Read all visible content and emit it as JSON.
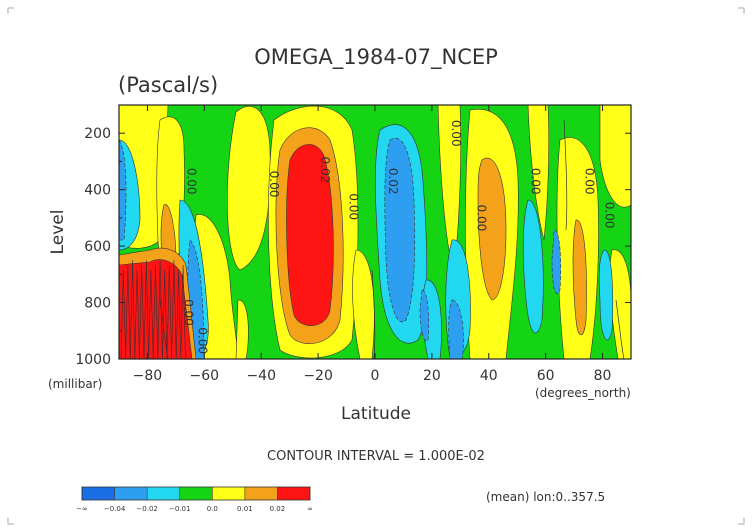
{
  "chart_data": {
    "type": "heatmap",
    "title": "OMEGA_1984-07_NCEP",
    "units": "(Pascal/s)",
    "xlabel": "Latitude",
    "x_units": "(degrees_north)",
    "ylabel": "Level",
    "y_units": "(millibar)",
    "xlim": [
      -90,
      90
    ],
    "ylim": [
      1000,
      100
    ],
    "x_ticks": [
      -80,
      -60,
      -40,
      -20,
      0,
      20,
      40,
      60,
      80
    ],
    "x_tick_labels": [
      "−80",
      "−60",
      "−40",
      "−20",
      "0",
      "20",
      "40",
      "60",
      "80"
    ],
    "y_ticks": [
      200,
      400,
      600,
      800,
      1000
    ],
    "y_tick_labels": [
      "200",
      "400",
      "600",
      "800",
      "1000"
    ],
    "contour_interval_text": "CONTOUR INTERVAL = 1.000E-02",
    "footnote": "(mean) lon:0..357.5",
    "colorbar": {
      "colors": [
        "#1a6fe6",
        "#2e9ff0",
        "#22d8f0",
        "#14d414",
        "#ffff18",
        "#f5a21b",
        "#ff1414"
      ],
      "tick_labels": [
        "−∞",
        "−0.04",
        "−0.02",
        "−0.01",
        "0.0",
        "0.01",
        "0.02",
        "∞"
      ]
    },
    "contour_labels": [
      {
        "text": "0.00",
        "lat": -66,
        "level": 370
      },
      {
        "text": "0.00",
        "lat": -37,
        "level": 380
      },
      {
        "text": "0.02",
        "lat": -19,
        "level": 330
      },
      {
        "text": "0.00",
        "lat": -9,
        "level": 460
      },
      {
        "text": "0.02",
        "lat": 5,
        "level": 370
      },
      {
        "text": "0.00",
        "lat": 27,
        "level": 200
      },
      {
        "text": "0.00",
        "lat": 36,
        "level": 500
      },
      {
        "text": "0.00",
        "lat": 55,
        "level": 370
      },
      {
        "text": "0.00",
        "lat": 74,
        "level": 370
      },
      {
        "text": "0.00",
        "lat": 81,
        "level": 490
      },
      {
        "text": "0.00",
        "lat": -67,
        "level": 835
      },
      {
        "text": "0.00",
        "lat": -62,
        "level": 935
      }
    ],
    "field_bands": [
      {
        "band": "red",
        "lat_range": [
          -30,
          -14
        ],
        "level_range": [
          220,
          930
        ],
        "value_range": [
          0.02,
          0.04
        ]
      },
      {
        "band": "orange",
        "lat_range": [
          -36,
          -10
        ],
        "level_range": [
          160,
          960
        ],
        "value_range": [
          0.01,
          0.02
        ]
      },
      {
        "band": "red",
        "lat_range": [
          -90,
          -68
        ],
        "level_range": [
          620,
          1000
        ],
        "value_range": [
          0.02,
          0.04
        ]
      },
      {
        "band": "blue",
        "lat_range": [
          2,
          16
        ],
        "level_range": [
          170,
          950
        ],
        "value_range": [
          -0.02,
          -0.01
        ]
      },
      {
        "band": "orange",
        "lat_range": [
          36,
          50
        ],
        "level_range": [
          260,
          660
        ],
        "value_range": [
          0.01,
          0.02
        ]
      }
    ]
  }
}
